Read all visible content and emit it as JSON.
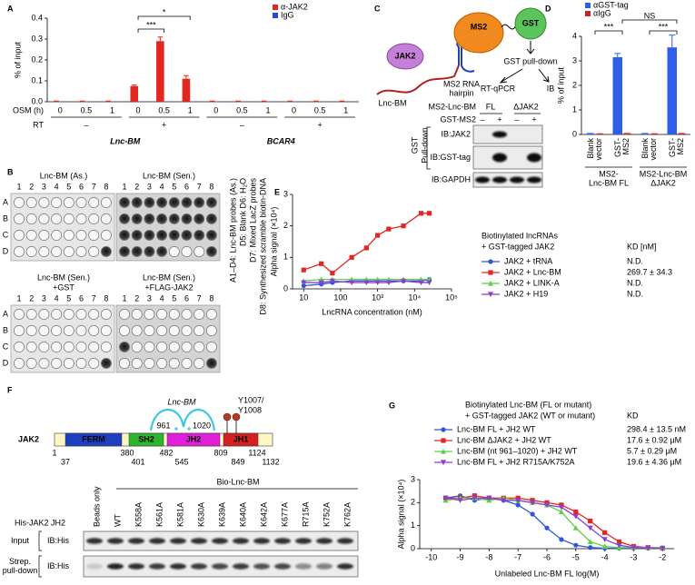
{
  "panel_labels": [
    "A",
    "B",
    "C",
    "D",
    "E",
    "F",
    "G"
  ],
  "chart_data": [
    {
      "type": "bar",
      "ylabel": "% of input",
      "ylim": [
        0,
        0.4
      ],
      "yticks": [
        {
          "value": 0,
          "label": "0.0"
        },
        {
          "value": 0.1,
          "label": "0.1"
        },
        {
          "value": 0.2,
          "label": "0.2"
        },
        {
          "value": 0.3,
          "label": "0.3"
        },
        {
          "value": 0.4,
          "label": "0.4"
        }
      ],
      "category_label": "OSM (h)",
      "categories": [
        "0",
        "0.5",
        "1",
        "0",
        "0.5",
        "1",
        "0",
        "0.5",
        "1",
        "0",
        "0.5",
        "1"
      ],
      "group_label": "RT",
      "groups": [
        "–",
        "+",
        "–",
        "+"
      ],
      "supergroups": [
        "Lnc-BM",
        "BCAR4"
      ],
      "series": [
        {
          "name": "α-JAK2",
          "color": "#e3261f",
          "values": [
            0.002,
            0.002,
            0.002,
            0.075,
            0.29,
            0.11,
            0.002,
            0.002,
            0.002,
            0.002,
            0.002,
            0.002
          ],
          "errors": [
            0.001,
            0.001,
            0.001,
            0.005,
            0.02,
            0.015,
            0.001,
            0.001,
            0.001,
            0.001,
            0.001,
            0.001
          ]
        },
        {
          "name": "IgG",
          "color": "#2447d6",
          "values": [
            0.001,
            0.001,
            0.001,
            0.002,
            0.002,
            0.002,
            0.001,
            0.001,
            0.001,
            0.001,
            0.001,
            0.001
          ]
        }
      ],
      "annotations": [
        "***",
        "*"
      ]
    },
    {
      "type": "bar",
      "ylabel": "% of input",
      "ylim": [
        0,
        4
      ],
      "yticks": [
        0,
        1,
        2,
        3,
        4
      ],
      "categories": [
        [
          "Blank",
          "vector"
        ],
        [
          "GST-",
          "MS2"
        ],
        [
          "Blank",
          "vector"
        ],
        [
          "GST-",
          "MS2"
        ]
      ],
      "groups": [
        [
          "MS2-",
          "Lnc-BM FL"
        ],
        [
          "MS2-Lnc-BM",
          "ΔJAK2"
        ]
      ],
      "series": [
        {
          "name": "αGST-tag",
          "color": "#2f5fea",
          "values": [
            0.03,
            3.15,
            0.03,
            3.55
          ],
          "errors": [
            0.01,
            0.15,
            0.01,
            0.5
          ]
        },
        {
          "name": "αIgG",
          "color": "#c2262a",
          "values": [
            0.02,
            0.03,
            0.02,
            0.03
          ],
          "errors": [
            0.01,
            0.01,
            0.01,
            0.01
          ]
        }
      ],
      "annotations": [
        "***",
        "NS",
        "***"
      ]
    },
    {
      "type": "line",
      "ylabel": "Alpha signal (×10⁴)",
      "xlabel": "LncRNA concentration (nM)",
      "xscale": "log",
      "xlim": [
        5,
        100000
      ],
      "xticks": [
        10,
        100,
        {
          "value": 1000,
          "label": "10³"
        },
        {
          "value": 10000,
          "label": "10⁴"
        },
        {
          "value": 100000,
          "label": "10⁵"
        }
      ],
      "ylim": [
        0,
        3
      ],
      "yticks": [
        0,
        1,
        2,
        3
      ],
      "x": [
        10,
        30,
        60,
        200,
        500,
        1000,
        2000,
        5000,
        15000,
        25000
      ],
      "legend_title": [
        "Biotinylated lncRNAs",
        "+ GST-tagged JAK2"
      ],
      "kd_label": "KD [nM]",
      "series": [
        {
          "name": "JAK2 + tRNA",
          "color": "#2f56d6",
          "marker": "circle",
          "values": [
            0.1,
            0.15,
            0.2,
            0.25,
            0.25,
            0.25,
            0.25,
            0.25,
            0.25,
            0.3
          ],
          "kd": "N.D."
        },
        {
          "name": "JAK2 + Lnc-BM",
          "color": "#e3261f",
          "marker": "square",
          "values": [
            0.6,
            0.8,
            0.5,
            1.0,
            1.3,
            1.7,
            1.9,
            2.0,
            2.4,
            2.4
          ],
          "kd": "269.7 ± 34.3",
          "kd_color": "#e3261f"
        },
        {
          "name": "JAK2 + LINK-A",
          "color": "#5fd04a",
          "marker": "triangle",
          "values": [
            0.25,
            0.3,
            0.3,
            0.3,
            0.3,
            0.3,
            0.3,
            0.3,
            0.3,
            0.3
          ],
          "kd": "N.D."
        },
        {
          "name": "JAK2 + H19",
          "color": "#8a3fd1",
          "marker": "down",
          "values": [
            0.2,
            0.2,
            0.25,
            0.2,
            0.2,
            0.2,
            0.2,
            0.25,
            0.2,
            0.2
          ],
          "kd": "N.D."
        }
      ]
    },
    {
      "type": "line",
      "ylabel": "Alpha signal (×10⁴)",
      "xlabel": "Unlabeled Lnc-BM FL log(M)",
      "xscale": "linear",
      "xlim": [
        -10.4,
        -1.6
      ],
      "xticks": [
        -10,
        -9,
        -8,
        -7,
        -6,
        -5,
        -4,
        -3,
        -2
      ],
      "ylim": [
        0,
        3
      ],
      "yticks": [
        0,
        1,
        2,
        3
      ],
      "x": [
        -9.5,
        -9,
        -8.5,
        -8,
        -7.5,
        -7,
        -6.5,
        -6,
        -5.5,
        -5,
        -4.5,
        -4,
        -3.5,
        -3,
        -2.5,
        -2
      ],
      "legend_title": [
        "Biotinylated Lnc-BM (FL or mutant)",
        "+ GST-tagged JAK2 (WT or mutant)"
      ],
      "kd_label": "KD",
      "series": [
        {
          "name": "Lnc-BM FL + JH2 WT",
          "color": "#2f56d6",
          "marker": "circle",
          "values": [
            2.2,
            2.3,
            2.1,
            2.2,
            2.1,
            1.9,
            1.5,
            0.9,
            0.4,
            0.15,
            0.05,
            0.02,
            0.02,
            0.02,
            0.02,
            0.02
          ],
          "kd": "298.4 ± 13.5 nM",
          "kd_color": "#e3261f"
        },
        {
          "name": "Lnc-BM ΔJAK2 + JH2 WT",
          "color": "#e3261f",
          "marker": "square",
          "values": [
            2.2,
            2.2,
            2.3,
            2.2,
            2.2,
            2.2,
            2.1,
            2.0,
            1.9,
            1.6,
            1.2,
            0.7,
            0.3,
            0.1,
            0.05,
            0.02
          ],
          "kd": "17.6 ± 0.92 μM"
        },
        {
          "name": "Lnc-BM (nt 961–1020) + JH2 WT",
          "color": "#5fd04a",
          "marker": "triangle",
          "values": [
            2.1,
            2.2,
            2.2,
            2.1,
            2.2,
            2.1,
            2.0,
            1.9,
            1.6,
            0.9,
            0.3,
            0.1,
            0.05,
            0.05,
            0.05,
            0.05
          ],
          "kd": "5.7 ± 0.29 μM"
        },
        {
          "name": "Lnc-BM FL + JH2 R715A/K752A",
          "color": "#8a3fd1",
          "marker": "down",
          "values": [
            2.2,
            2.1,
            2.2,
            2.2,
            2.1,
            2.1,
            2.0,
            1.9,
            1.8,
            1.4,
            0.9,
            0.4,
            0.15,
            0.05,
            0.03,
            0.02
          ],
          "kd": "19.6 ± 4.36 μM"
        }
      ]
    }
  ],
  "blot_b": {
    "panels": [
      [
        "Lnc-BM (As.)"
      ],
      [
        "Lnc-BM (Sen.)"
      ],
      [
        "Lnc-BM (Sen.)",
        "+GST"
      ],
      [
        "Lnc-BM (Sen.)",
        "+FLAG-JAK2"
      ]
    ],
    "columns": [
      "1",
      "2",
      "3",
      "4",
      "5",
      "6",
      "7",
      "8"
    ],
    "rows": [
      "A",
      "B",
      "C",
      "D"
    ],
    "key": [
      "A1–D4: Lnc-BM probes (As.)",
      "D5: Blank  D6: H₂O",
      "D7: Mixed LacZ probes",
      "D8: Synthesized scramble biotin-DNA"
    ]
  },
  "diagram_c": {
    "nodes": {
      "jak2": "JAK2",
      "ms2": "MS2",
      "gst": "GST",
      "lnc": "Lnc-BM",
      "hairpin": [
        "MS2 RNA",
        "hairpin"
      ],
      "pulldown": "GST pull-down",
      "rtqpcr": "RT-qPCR",
      "ib": "IB"
    },
    "blot": {
      "construct": "MS2-Lnc-BM",
      "lanes": [
        "FL",
        "ΔJAK2"
      ],
      "treatment": "GST-MS2",
      "signs": [
        "–",
        "+",
        "–",
        "+"
      ],
      "side": [
        "GST",
        "Pull-down"
      ],
      "rows": [
        "IB:JAK2",
        "IB:GST-tag",
        "IB:GAPDH"
      ]
    }
  },
  "diagram_f": {
    "protein": "JAK2",
    "domains": [
      "FERM",
      "SH2",
      "JH2",
      "JH1"
    ],
    "positions_top": [
      "1",
      "380",
      "482",
      "809",
      "1124"
    ],
    "positions_bottom": [
      "37",
      "401",
      "545",
      "849",
      "1132"
    ],
    "rna": "Lnc-BM",
    "sites": [
      "961",
      "1020"
    ],
    "phospho": [
      "Y1007/",
      "Y1008"
    ],
    "blot": {
      "bait": "Bio-Lnc-BM",
      "prey": "His-JAK2 JH2",
      "lanes": [
        "Beads only",
        "WT",
        "K558A",
        "K561A",
        "K581A",
        "K630A",
        "K639A",
        "K640A",
        "K642A",
        "K677A",
        "R715A",
        "K752A",
        "K762A"
      ],
      "rows": [
        [
          "Input"
        ],
        [
          "Strep.",
          "pull-down"
        ]
      ],
      "ib": [
        "IB:His",
        "IB:His"
      ]
    }
  }
}
